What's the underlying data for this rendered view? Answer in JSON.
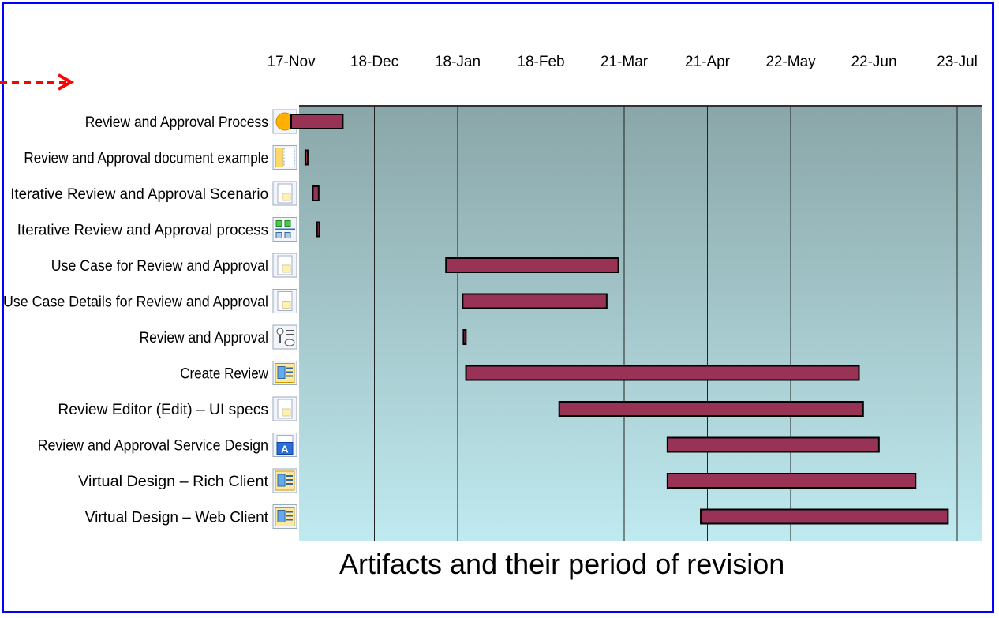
{
  "caption": "Artifacts and their period of revision",
  "chart_data": {
    "type": "gantt",
    "x_ticks": [
      "17-Nov",
      "18-Dec",
      "18-Jan",
      "18-Feb",
      "21-Mar",
      "21-Apr",
      "22-May",
      "22-Jun",
      "23-Jul"
    ],
    "tasks": [
      {
        "label": "Review and Approval Process",
        "icon": "sun-process-icon",
        "start": 0.0,
        "end": 0.62
      },
      {
        "label": "Review and Approval document example",
        "icon": "layout-document-icon",
        "start": 0.17,
        "end": 0.18
      },
      {
        "label": "Iterative Review and Approval Scenario",
        "icon": "document-icon",
        "start": 0.26,
        "end": 0.33
      },
      {
        "label": "Iterative Review and Approval process",
        "icon": "process-flow-icon",
        "start": 0.31,
        "end": 0.33
      },
      {
        "label": "Use Case for Review and Approval",
        "icon": "document-icon",
        "start": 1.86,
        "end": 3.93
      },
      {
        "label": "Use Case Details for Review and Approval",
        "icon": "document-icon",
        "start": 2.06,
        "end": 3.79
      },
      {
        "label": "Review and Approval",
        "icon": "use-case-actor-icon",
        "start": 2.07,
        "end": 2.09
      },
      {
        "label": "Create Review",
        "icon": "ui-screen-icon",
        "start": 2.1,
        "end": 6.82
      },
      {
        "label": "Review Editor (Edit) – UI specs",
        "icon": "document-icon",
        "start": 3.22,
        "end": 6.87
      },
      {
        "label": "Review and Approval Service Design",
        "icon": "design-a-icon",
        "start": 4.52,
        "end": 7.06
      },
      {
        "label": "Virtual Design – Rich Client",
        "icon": "ui-screen-icon",
        "start": 4.52,
        "end": 7.5
      },
      {
        "label": "Virtual Design – Web Client",
        "icon": "ui-screen-icon",
        "start": 4.92,
        "end": 7.89
      }
    ],
    "x_range": [
      0,
      8.3
    ],
    "grid": true,
    "colors": {
      "bar": "#993355",
      "bar_border": "#000000",
      "bg_top": "#8aa6a8",
      "bg_bottom": "#bfeaf0",
      "frame": "#0000ff",
      "arrow": "#ff0000"
    }
  }
}
